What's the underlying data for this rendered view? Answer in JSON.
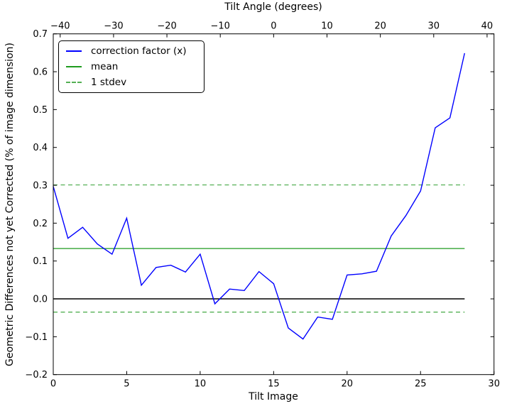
{
  "figure": {
    "background": "#ffffff",
    "frame_color": "#000000",
    "text_color": "#000000"
  },
  "chart_data": {
    "type": "line",
    "title": "Tilt Angle (degrees)",
    "x": [
      0,
      1,
      2,
      3,
      4,
      5,
      6,
      7,
      8,
      9,
      10,
      11,
      12,
      13,
      14,
      15,
      16,
      17,
      18,
      19,
      20,
      21,
      22,
      23,
      24,
      25,
      26,
      27,
      28
    ],
    "series": [
      {
        "name": "correction factor (x)",
        "color": "#0000ff",
        "style": "solid",
        "values": [
          0.297,
          0.16,
          0.189,
          0.145,
          0.118,
          0.213,
          0.036,
          0.083,
          0.089,
          0.071,
          0.118,
          -0.013,
          0.026,
          0.022,
          0.072,
          0.04,
          -0.077,
          -0.106,
          -0.048,
          -0.054,
          0.063,
          0.066,
          0.073,
          0.166,
          0.22,
          0.285,
          0.452,
          0.478,
          0.649
        ]
      }
    ],
    "reference_lines": [
      {
        "name": "zero",
        "value": 0.0,
        "color": "#000000",
        "style": "solid"
      },
      {
        "name": "mean",
        "value": 0.133,
        "color": "#1f9b1f",
        "style": "solid"
      },
      {
        "name": "stdev-upper",
        "value": 0.301,
        "color": "#54b054",
        "style": "dashed"
      },
      {
        "name": "stdev-lower",
        "value": -0.035,
        "color": "#54b054",
        "style": "dashed"
      }
    ],
    "mean": 0.133,
    "stdev": 0.168,
    "axes": {
      "bottom": {
        "label": "Tilt Image",
        "min": 0,
        "max": 30,
        "ticks": [
          0,
          5,
          10,
          15,
          20,
          25,
          30
        ],
        "tick_labels": [
          "0",
          "5",
          "10",
          "15",
          "20",
          "25",
          "30"
        ]
      },
      "top": {
        "label": "Tilt Angle (degrees)",
        "min": -41.3,
        "max": 41.3,
        "ticks": [
          -40,
          -30,
          -20,
          -10,
          0,
          10,
          20,
          30,
          40
        ],
        "tick_labels": [
          "−40",
          "−30",
          "−20",
          "−10",
          "0",
          "10",
          "20",
          "30",
          "40"
        ]
      },
      "left": {
        "label": "Geometric Differences not yet Corrected (% of image dimension)",
        "min": -0.2,
        "max": 0.7,
        "ticks": [
          0.7,
          0.6,
          0.5,
          0.4,
          0.3,
          0.2,
          0.1,
          0.0,
          -0.1,
          -0.2
        ],
        "tick_labels": [
          "0.7",
          "0.6",
          "0.5",
          "0.4",
          "0.3",
          "0.2",
          "0.1",
          "0.0",
          "−0.1",
          "−0.2"
        ]
      }
    },
    "grid": false,
    "legend": {
      "position": "upper left",
      "entries": [
        {
          "label": "correction factor (x)",
          "color": "#0000ff",
          "dash": false
        },
        {
          "label": "mean",
          "color": "#1f9b1f",
          "dash": false
        },
        {
          "label": "1 stdev",
          "color": "#54b054",
          "dash": true
        }
      ]
    }
  }
}
